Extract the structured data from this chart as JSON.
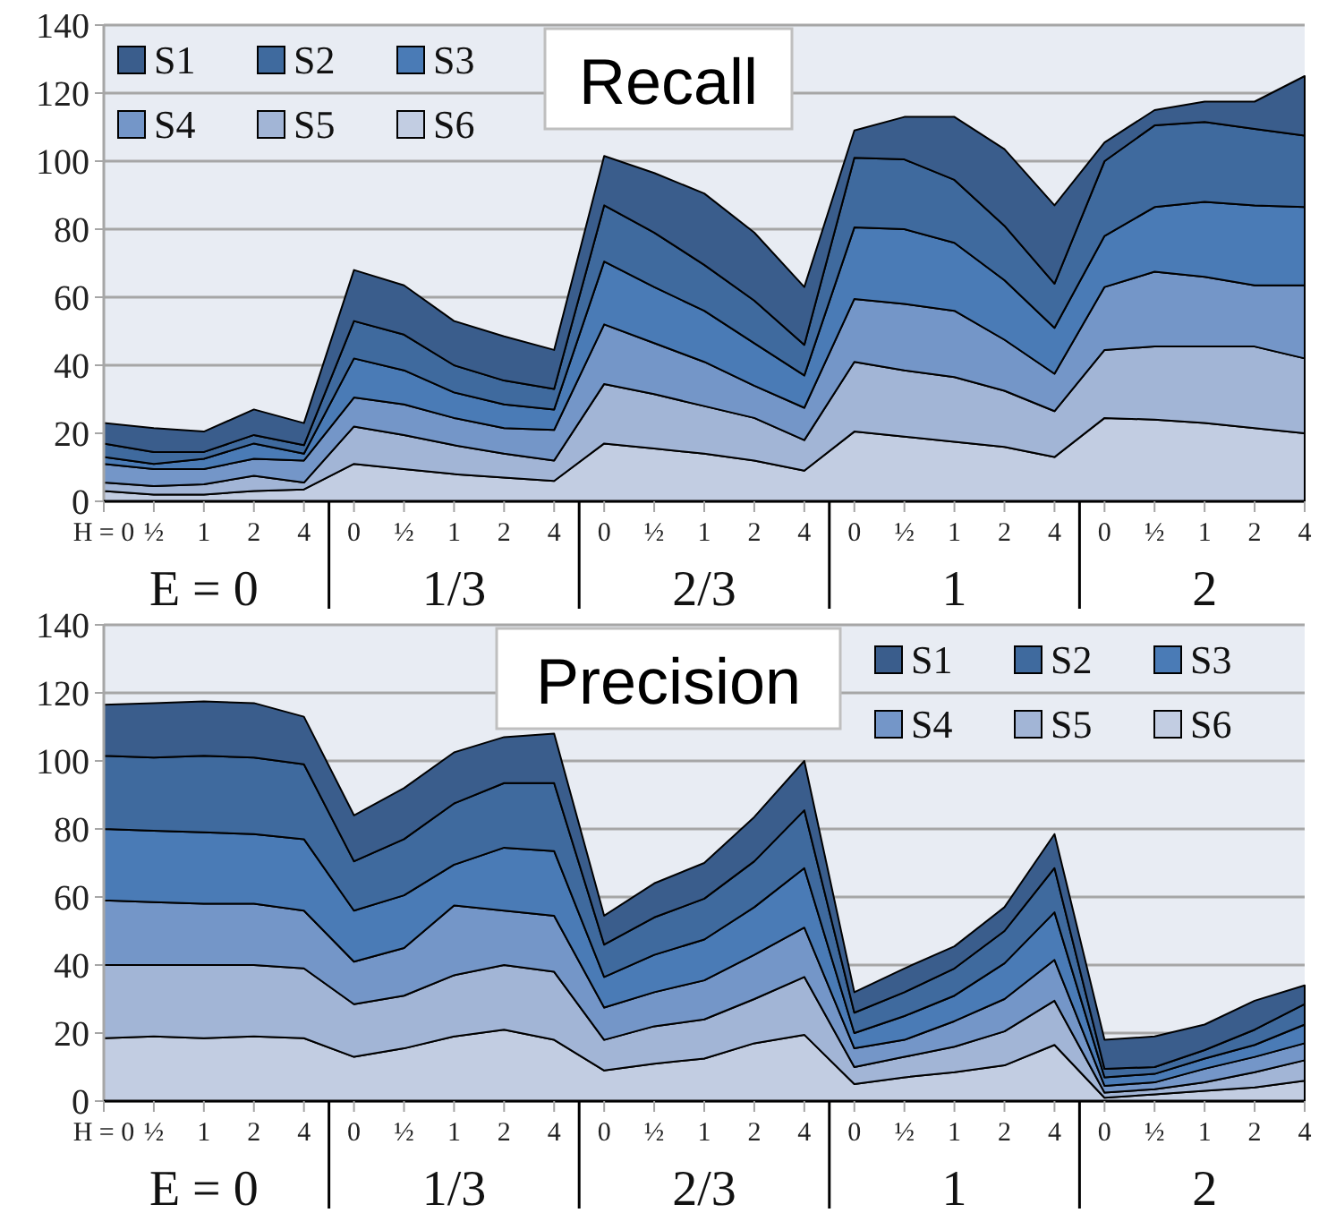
{
  "chart_data": [
    {
      "type": "area",
      "title": "Recall",
      "stacked": true,
      "legend": "top left",
      "grid": "y",
      "ylim": [
        0,
        140
      ],
      "yticks": [
        0,
        20,
        40,
        60,
        80,
        100,
        120,
        140
      ],
      "categories": [
        "H = 0",
        "½",
        "1",
        "2",
        "4",
        "0",
        "½",
        "1",
        "2",
        "4",
        "0",
        "½",
        "1",
        "2",
        "4",
        "0",
        "½",
        "1",
        "2",
        "4",
        "0",
        "½",
        "1",
        "2",
        "4"
      ],
      "annotations": [
        "E = 0",
        "1/3",
        "2/3",
        "1",
        "2"
      ],
      "series": [
        {
          "name": "S6",
          "color": "#c2cde2",
          "values": [
            3,
            2,
            2,
            3,
            3.5,
            11,
            9.5,
            8,
            7,
            6,
            17,
            15.5,
            14,
            12,
            9,
            20.5,
            19,
            17.5,
            16,
            13,
            24.5,
            24,
            23,
            21.5,
            20
          ]
        },
        {
          "name": "S5",
          "color": "#a2b5d6",
          "values": [
            2.5,
            2.5,
            3,
            4.5,
            2,
            11,
            10,
            8.5,
            7,
            6,
            17.5,
            16,
            14,
            12.5,
            9,
            20.5,
            19.5,
            19,
            16.5,
            13.5,
            20,
            21.5,
            22.5,
            24,
            22
          ]
        },
        {
          "name": "S4",
          "color": "#7496c8",
          "values": [
            5.5,
            5,
            4.5,
            5,
            6.5,
            8.5,
            9,
            8,
            7.5,
            9,
            17.5,
            15,
            13,
            9.5,
            9.5,
            18.5,
            19.5,
            19.5,
            15,
            11,
            18.5,
            22,
            20.5,
            18,
            21.5
          ]
        },
        {
          "name": "S3",
          "color": "#4a7bb6",
          "values": [
            2,
            1.5,
            3,
            4.5,
            2,
            11.5,
            10,
            7.5,
            7,
            6,
            18.5,
            16.5,
            15,
            12.5,
            9.5,
            21,
            22,
            20,
            17.5,
            13.5,
            15,
            19,
            22,
            23.5,
            23
          ]
        },
        {
          "name": "S2",
          "color": "#3f6a9e",
          "values": [
            4,
            3.5,
            2,
            2.5,
            2.5,
            11,
            10.5,
            8,
            7,
            6,
            16.5,
            16,
            13.5,
            12.5,
            9,
            20.5,
            20.5,
            18.5,
            16,
            13,
            22,
            24,
            23.5,
            22.5,
            21
          ]
        },
        {
          "name": "S1",
          "color": "#3a5d8c",
          "values": [
            6,
            7,
            6,
            7.5,
            6.5,
            15,
            14.5,
            13,
            13,
            11.5,
            14.5,
            17.5,
            21,
            20,
            17,
            8,
            12.5,
            18.5,
            22.5,
            23,
            5.5,
            4.5,
            6,
            8,
            17.5
          ]
        }
      ]
    },
    {
      "type": "area",
      "title": "Precision",
      "stacked": true,
      "legend": "top right",
      "grid": "y",
      "ylim": [
        0,
        140
      ],
      "yticks": [
        0,
        20,
        40,
        60,
        80,
        100,
        120,
        140
      ],
      "categories": [
        "H = 0",
        "½",
        "1",
        "2",
        "4",
        "0",
        "½",
        "1",
        "2",
        "4",
        "0",
        "½",
        "1",
        "2",
        "4",
        "0",
        "½",
        "1",
        "2",
        "4",
        "0",
        "½",
        "1",
        "2",
        "4"
      ],
      "annotations": [
        "E = 0",
        "1/3",
        "2/3",
        "1",
        "2"
      ],
      "series": [
        {
          "name": "S6",
          "color": "#c2cde2",
          "values": [
            18.5,
            19,
            18.5,
            19,
            18.5,
            13,
            15.5,
            19,
            21,
            18,
            9,
            11,
            12.5,
            17,
            19.5,
            5,
            7,
            8.5,
            10.5,
            16.5,
            1,
            2,
            3,
            4,
            6
          ]
        },
        {
          "name": "S5",
          "color": "#a2b5d6",
          "values": [
            21.5,
            21,
            21.5,
            21,
            20.5,
            15.5,
            15.5,
            18,
            19,
            20,
            9,
            11,
            11.5,
            13,
            17,
            5,
            6,
            7.5,
            10,
            13,
            1.5,
            1.5,
            2.5,
            4.5,
            6
          ]
        },
        {
          "name": "S4",
          "color": "#7496c8",
          "values": [
            19,
            18.5,
            18,
            18,
            17,
            12.5,
            14,
            20.5,
            16,
            16.5,
            9.5,
            10,
            11.5,
            13,
            14.5,
            5.5,
            5,
            7.5,
            9.5,
            12,
            2,
            2,
            4,
            4.5,
            5
          ]
        },
        {
          "name": "S3",
          "color": "#4a7bb6",
          "values": [
            21,
            21,
            21,
            20.5,
            21,
            15,
            15.5,
            12,
            18.5,
            19,
            9,
            11,
            12,
            14,
            17.5,
            4.5,
            7,
            7.5,
            10.5,
            14,
            2.5,
            2.5,
            3,
            3.5,
            5.5
          ]
        },
        {
          "name": "S2",
          "color": "#3f6a9e",
          "values": [
            21.5,
            21.5,
            22.5,
            22.5,
            22,
            14.5,
            16.5,
            18,
            19,
            20,
            9.5,
            11,
            12,
            13.5,
            17,
            6,
            7,
            8,
            9.5,
            13,
            2.5,
            2,
            2.5,
            4.5,
            6
          ]
        },
        {
          "name": "S1",
          "color": "#3a5d8c",
          "values": [
            15,
            16,
            16,
            16,
            14,
            13.5,
            15,
            15,
            13.5,
            14.5,
            8.5,
            10,
            10.5,
            13,
            14.5,
            6,
            7,
            6.5,
            7,
            10,
            8.5,
            9,
            7.5,
            8.5,
            5.5
          ]
        }
      ]
    }
  ]
}
